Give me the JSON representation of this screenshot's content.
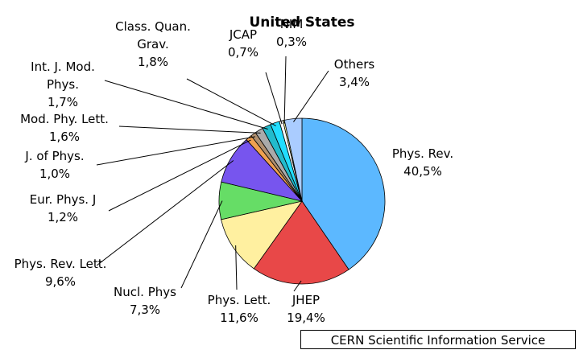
{
  "chart_data": {
    "type": "pie",
    "title": "United States",
    "categories": [
      "Phys. Rev.",
      "JHEP",
      "Phys. Lett.",
      "Nucl. Phys",
      "Phys. Rev. Lett.",
      "Eur. Phys. J",
      "J. of Phys.",
      "Mod. Phy. Lett.",
      "Int. J. Mod. Phys.",
      "Class. Quan. Grav.",
      "JCAP",
      "NIM",
      "Others"
    ],
    "values": [
      40.5,
      19.4,
      11.6,
      7.3,
      9.6,
      1.2,
      1.0,
      1.6,
      1.7,
      1.8,
      0.7,
      0.3,
      3.4
    ],
    "value_labels": [
      "40,5%",
      "19,4%",
      "11,6%",
      "7,3%",
      "9,6%",
      "1,2%",
      "1,0%",
      "1,6%",
      "1,7%",
      "1,8%",
      "0,7%",
      "0,3%",
      "3,4%"
    ],
    "colors": [
      "#5cb8ff",
      "#e84848",
      "#fff0a0",
      "#66dd66",
      "#7755ee",
      "#f0a050",
      "#b09070",
      "#aaaaaa",
      "#22bbcc",
      "#22ddff",
      "#ffffff",
      "#ffffa0",
      "#aaccff"
    ],
    "source": "CERN Scientific Information Service"
  }
}
